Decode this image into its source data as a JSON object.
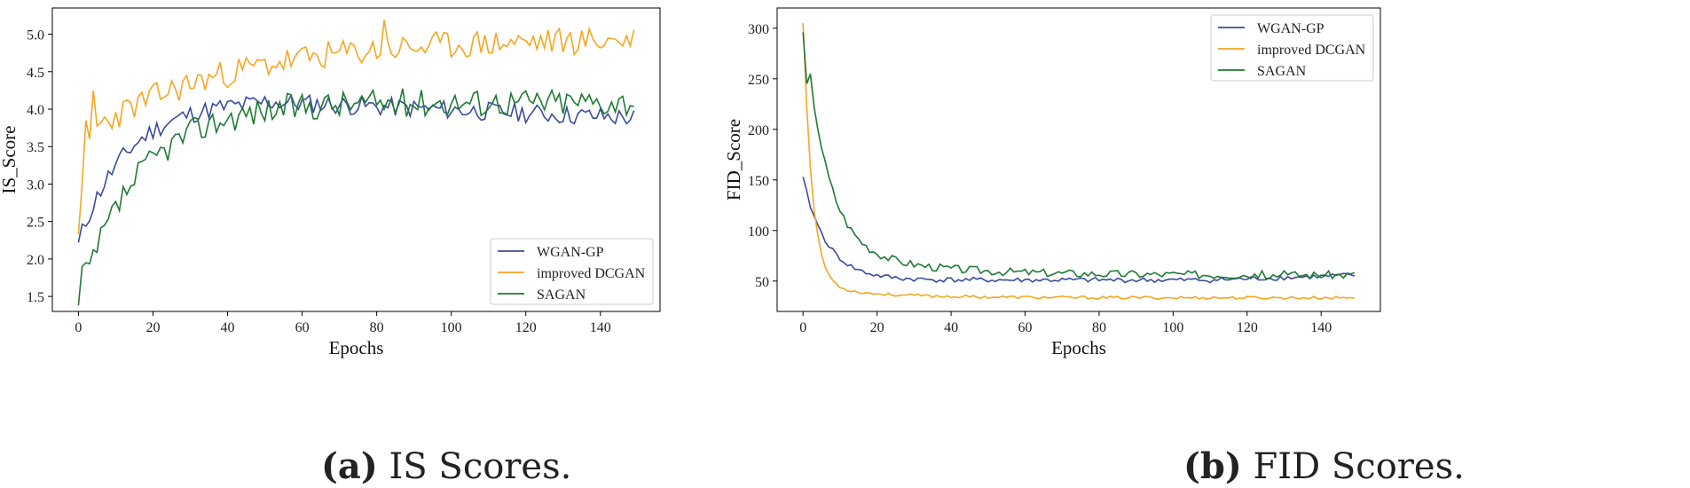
{
  "colors": {
    "wgan": "#3a4b9c",
    "dcgan": "#f5a623",
    "sagan": "#1f7a33"
  },
  "captions": {
    "a": {
      "label": "(a)",
      "text": " IS Scores."
    },
    "b": {
      "label": "(b)",
      "text": " FID Scores."
    }
  },
  "chart_data": [
    {
      "type": "line",
      "title": "",
      "xlabel": "Epochs",
      "ylabel": "IS_Score",
      "xlim": [
        -7,
        156
      ],
      "ylim": [
        1.3,
        5.35
      ],
      "xticks": [
        0,
        20,
        40,
        60,
        80,
        100,
        120,
        140
      ],
      "yticks": [
        1.5,
        2.0,
        2.5,
        3.0,
        3.5,
        4.0,
        4.5,
        5.0
      ],
      "ytick_labels": [
        "1.5",
        "2.0",
        "2.5",
        "3.0",
        "3.5",
        "4.0",
        "4.5",
        "5.0"
      ],
      "legend_position": "lower-right",
      "series": [
        {
          "name": "WGAN-GP",
          "color": "#3a4b9c",
          "kind": "is_wgan"
        },
        {
          "name": "improved DCGAN",
          "color": "#f5a623",
          "kind": "is_dcgan"
        },
        {
          "name": "SAGAN",
          "color": "#1f7a33",
          "kind": "is_sagan"
        }
      ]
    },
    {
      "type": "line",
      "title": "",
      "xlabel": "Epochs",
      "ylabel": "FID_Score",
      "xlim": [
        -7,
        156
      ],
      "ylim": [
        20,
        320
      ],
      "xticks": [
        0,
        20,
        40,
        60,
        80,
        100,
        120,
        140
      ],
      "yticks": [
        50,
        100,
        150,
        200,
        250,
        300
      ],
      "ytick_labels": [
        "50",
        "100",
        "150",
        "200",
        "250",
        "300"
      ],
      "legend_position": "top-right",
      "series": [
        {
          "name": "WGAN-GP",
          "color": "#3a4b9c",
          "kind": "fid_wgan"
        },
        {
          "name": "improved DCGAN",
          "color": "#f5a623",
          "kind": "fid_dcgan"
        },
        {
          "name": "SAGAN",
          "color": "#1f7a33",
          "kind": "fid_sagan"
        }
      ]
    }
  ]
}
